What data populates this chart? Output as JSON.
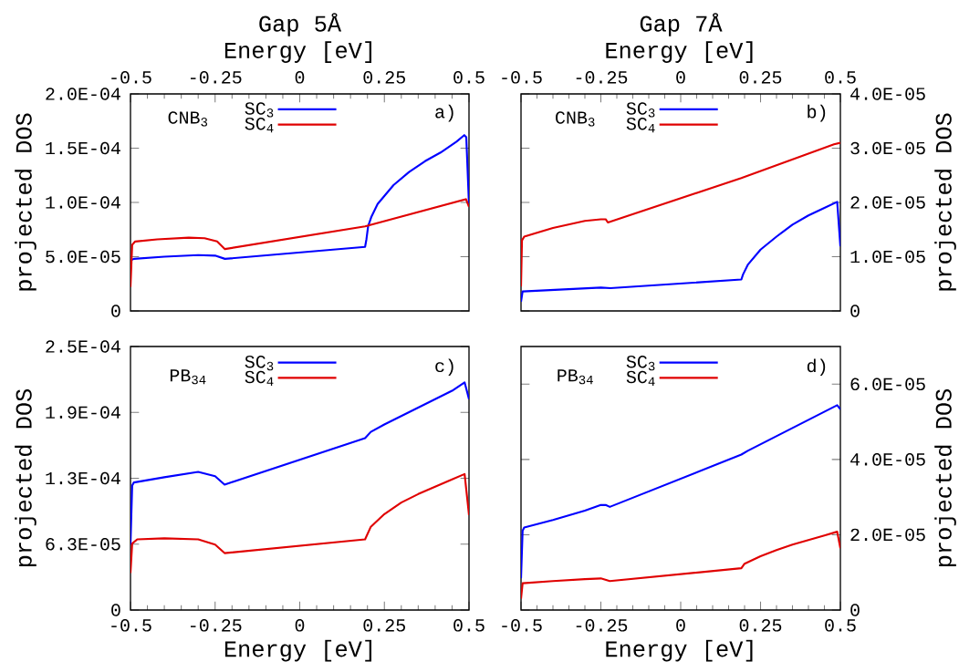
{
  "chart_data": [
    {
      "type": "line",
      "title": "Gap 5Å",
      "xlabel": "Energy [eV]",
      "ylabel": "projected DOS",
      "xlim": [
        -0.5,
        0.5
      ],
      "xticks": [
        -0.5,
        -0.25,
        0,
        0.25,
        0.5
      ],
      "ylim": [
        0,
        0.0002
      ],
      "yticks": [
        0,
        {
          "value": 5e-05,
          "label": "5.0E-05"
        },
        {
          "value": 0.0001,
          "label": "1.0E-04"
        },
        {
          "value": 0.00015,
          "label": "1.5E-04"
        },
        {
          "value": 0.0002,
          "label": "2.0E-04"
        }
      ],
      "legend": "top",
      "annotations": [
        "CNB$_{3}$",
        "a)"
      ],
      "series": [
        {
          "name": "SC$_{3}$",
          "color": "#0000ff",
          "x": [
            -0.497,
            -0.49,
            -0.4,
            -0.3,
            -0.25,
            -0.221,
            0.193,
            0.197,
            0.202,
            0.212,
            0.23,
            0.277,
            0.323,
            0.37,
            0.416,
            0.463,
            0.486,
            0.492,
            0.5
          ],
          "values": [
            4.7e-05,
            4.8e-05,
            5e-05,
            5.15e-05,
            5.1e-05,
            4.8e-05,
            5.9e-05,
            6.6e-05,
            7.8e-05,
            8.7e-05,
            9.85e-05,
            0.000116,
            0.000128,
            0.000138,
            0.000146,
            0.000156,
            0.000162,
            0.00016,
            9.7e-05
          ]
        },
        {
          "name": "SC$_{4}$",
          "color": "#e00000",
          "x": [
            -0.5,
            -0.495,
            -0.486,
            -0.421,
            -0.328,
            -0.281,
            -0.244,
            -0.221,
            0.193,
            0.491,
            0.5
          ],
          "values": [
            2.2e-05,
            6.1e-05,
            6.4e-05,
            6.6e-05,
            6.75e-05,
            6.7e-05,
            6.4e-05,
            5.7e-05,
            7.8e-05,
            0.000103,
            9.6e-05
          ]
        }
      ]
    },
    {
      "type": "line",
      "title": "Gap 7Å",
      "xlabel": "Energy [eV]",
      "ylabel": "projected DOS",
      "xlim": [
        -0.5,
        0.5
      ],
      "xticks": [
        -0.5,
        -0.25,
        0,
        0.25,
        0.5
      ],
      "ylim": [
        0,
        4e-05
      ],
      "yticks": [
        0,
        {
          "value": 1e-05,
          "label": "1.0E-05"
        },
        {
          "value": 2e-05,
          "label": "2.0E-05"
        },
        {
          "value": 3e-05,
          "label": "3.0E-05"
        },
        {
          "value": 4e-05,
          "label": "4.0E-05"
        }
      ],
      "legend": "top",
      "annotations": [
        "CNB$_{3}$",
        "b)"
      ],
      "series": [
        {
          "name": "SC$_{3}$",
          "color": "#0000ff",
          "x": [
            -0.5,
            -0.495,
            -0.25,
            -0.22,
            0.19,
            0.195,
            0.21,
            0.25,
            0.3,
            0.35,
            0.4,
            0.45,
            0.49,
            0.5
          ],
          "values": [
            1.7e-06,
            3.6e-06,
            4.3e-06,
            4.2e-06,
            5.8e-06,
            6.7e-06,
            8.5e-06,
            1.13e-05,
            1.37e-05,
            1.59e-05,
            1.76e-05,
            1.9e-05,
            2.01e-05,
            1.19e-05
          ]
        },
        {
          "name": "SC$_{4}$",
          "color": "#e00000",
          "x": [
            -0.5,
            -0.497,
            -0.49,
            -0.4,
            -0.3,
            -0.25,
            -0.235,
            -0.228,
            0.19,
            0.48,
            0.5
          ],
          "values": [
            4.5e-06,
            1.3e-05,
            1.37e-05,
            1.53e-05,
            1.66e-05,
            1.69e-05,
            1.69e-05,
            1.63e-05,
            2.45e-05,
            3.07e-05,
            3.1e-05
          ]
        }
      ]
    },
    {
      "type": "line",
      "xlabel": "Energy [eV]",
      "ylabel": "projected DOS",
      "xlim": [
        -0.5,
        0.5
      ],
      "xticks": [
        -0.5,
        -0.25,
        0,
        0.25,
        0.5
      ],
      "ylim": [
        0,
        0.00025
      ],
      "yticks": [
        0,
        {
          "value": 6.25e-05,
          "label": "6.3E-05"
        },
        {
          "value": 0.000125,
          "label": "1.3E-04"
        },
        {
          "value": 0.0001875,
          "label": "1.9E-04"
        },
        {
          "value": 0.00025,
          "label": "2.5E-04"
        }
      ],
      "legend": "top",
      "annotations": [
        "PB$_{34}$",
        "c)"
      ],
      "series": [
        {
          "name": "SC$_{3}$",
          "color": "#0000ff",
          "x": [
            -0.5,
            -0.495,
            -0.49,
            -0.4,
            -0.3,
            -0.25,
            -0.222,
            0.193,
            0.21,
            0.25,
            0.3,
            0.35,
            0.4,
            0.45,
            0.487,
            0.5
          ],
          "values": [
            6.2e-05,
            0.000118,
            0.000121,
            0.000126,
            0.000131,
            0.000127,
            0.000119,
            0.000163,
            0.000169,
            0.000176,
            0.000184,
            0.000192,
            0.0002,
            0.000208,
            0.000216,
            0.0002
          ]
        },
        {
          "name": "SC$_{4}$",
          "color": "#e00000",
          "x": [
            -0.5,
            -0.495,
            -0.48,
            -0.4,
            -0.3,
            -0.25,
            -0.222,
            0.193,
            0.21,
            0.25,
            0.3,
            0.35,
            0.4,
            0.45,
            0.487,
            0.5
          ],
          "values": [
            3.5e-05,
            6.3e-05,
            6.7e-05,
            6.8e-05,
            6.7e-05,
            6.2e-05,
            5.4e-05,
            6.7e-05,
            7.9e-05,
            9.1e-05,
            0.000102,
            0.00011,
            0.000117,
            0.000124,
            0.000129,
            9e-05
          ]
        }
      ]
    },
    {
      "type": "line",
      "xlabel": "Energy [eV]",
      "ylabel": "projected DOS",
      "xlim": [
        -0.5,
        0.5
      ],
      "xticks": [
        -0.5,
        -0.25,
        0,
        0.25,
        0.5
      ],
      "ylim": [
        0,
        7e-05
      ],
      "yticks": [
        0,
        {
          "value": 2e-05,
          "label": "2.0E-05"
        },
        {
          "value": 4e-05,
          "label": "4.0E-05"
        },
        {
          "value": 6e-05,
          "label": "6.0E-05"
        }
      ],
      "legend": "top",
      "annotations": [
        "PB$_{34}$",
        "d)"
      ],
      "series": [
        {
          "name": "SC$_{3}$",
          "color": "#0000ff",
          "x": [
            -0.5,
            -0.495,
            -0.49,
            -0.4,
            -0.3,
            -0.25,
            -0.235,
            -0.222,
            0.19,
            0.21,
            0.49,
            0.5
          ],
          "values": [
            8.4e-06,
            2.11e-05,
            2.19e-05,
            2.39e-05,
            2.64e-05,
            2.79e-05,
            2.79e-05,
            2.74e-05,
            4.13e-05,
            4.23e-05,
            5.44e-05,
            5.33e-05
          ]
        },
        {
          "name": "SC$_{4}$",
          "color": "#e00000",
          "x": [
            -0.5,
            -0.495,
            -0.4,
            -0.3,
            -0.25,
            -0.222,
            0.19,
            0.2,
            0.25,
            0.3,
            0.35,
            0.4,
            0.45,
            0.49,
            0.5
          ],
          "values": [
            3e-06,
            7.1e-06,
            7.7e-06,
            8.2e-06,
            8.4e-06,
            7.7e-06,
            1.11e-05,
            1.23e-05,
            1.43e-05,
            1.59e-05,
            1.74e-05,
            1.86e-05,
            1.98e-05,
            2.08e-05,
            1.64e-05
          ]
        }
      ]
    }
  ]
}
